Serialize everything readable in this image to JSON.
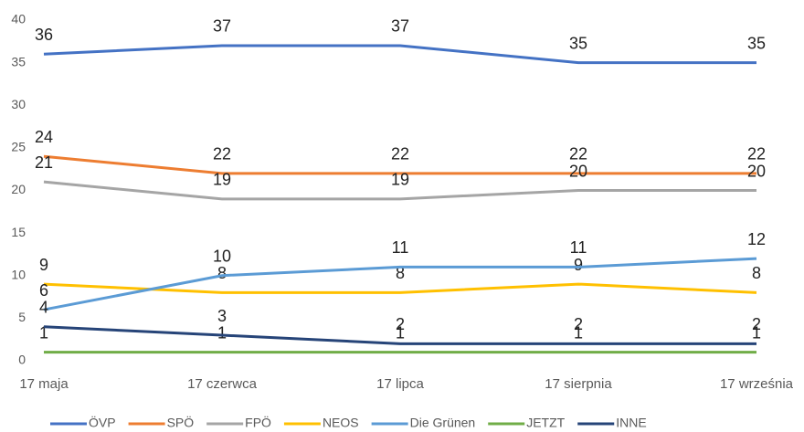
{
  "chart_data": {
    "type": "line",
    "categories": [
      "17 maja",
      "17 czerwca",
      "17 lipca",
      "17 sierpnia",
      "17 września"
    ],
    "series": [
      {
        "name": "ÖVP",
        "color": "#4472c4",
        "values": [
          36,
          37,
          37,
          35,
          35
        ]
      },
      {
        "name": "SPÖ",
        "color": "#ed7d31",
        "values": [
          24,
          22,
          22,
          22,
          22
        ]
      },
      {
        "name": "FPÖ",
        "color": "#a5a5a5",
        "values": [
          21,
          19,
          19,
          20,
          20
        ]
      },
      {
        "name": "NEOS",
        "color": "#ffc000",
        "values": [
          9,
          8,
          8,
          9,
          8
        ]
      },
      {
        "name": "Die Grünen",
        "color": "#5b9bd5",
        "values": [
          6,
          10,
          11,
          11,
          12
        ]
      },
      {
        "name": "JETZT",
        "color": "#70ad47",
        "values": [
          1,
          1,
          1,
          1,
          1
        ]
      },
      {
        "name": "INNE",
        "color": "#264478",
        "values": [
          4,
          3,
          2,
          2,
          2
        ]
      }
    ],
    "ylim": [
      0,
      40
    ],
    "yticks": [
      0,
      5,
      10,
      15,
      20,
      25,
      30,
      35,
      40
    ],
    "grid": false,
    "legend": "bottom"
  }
}
